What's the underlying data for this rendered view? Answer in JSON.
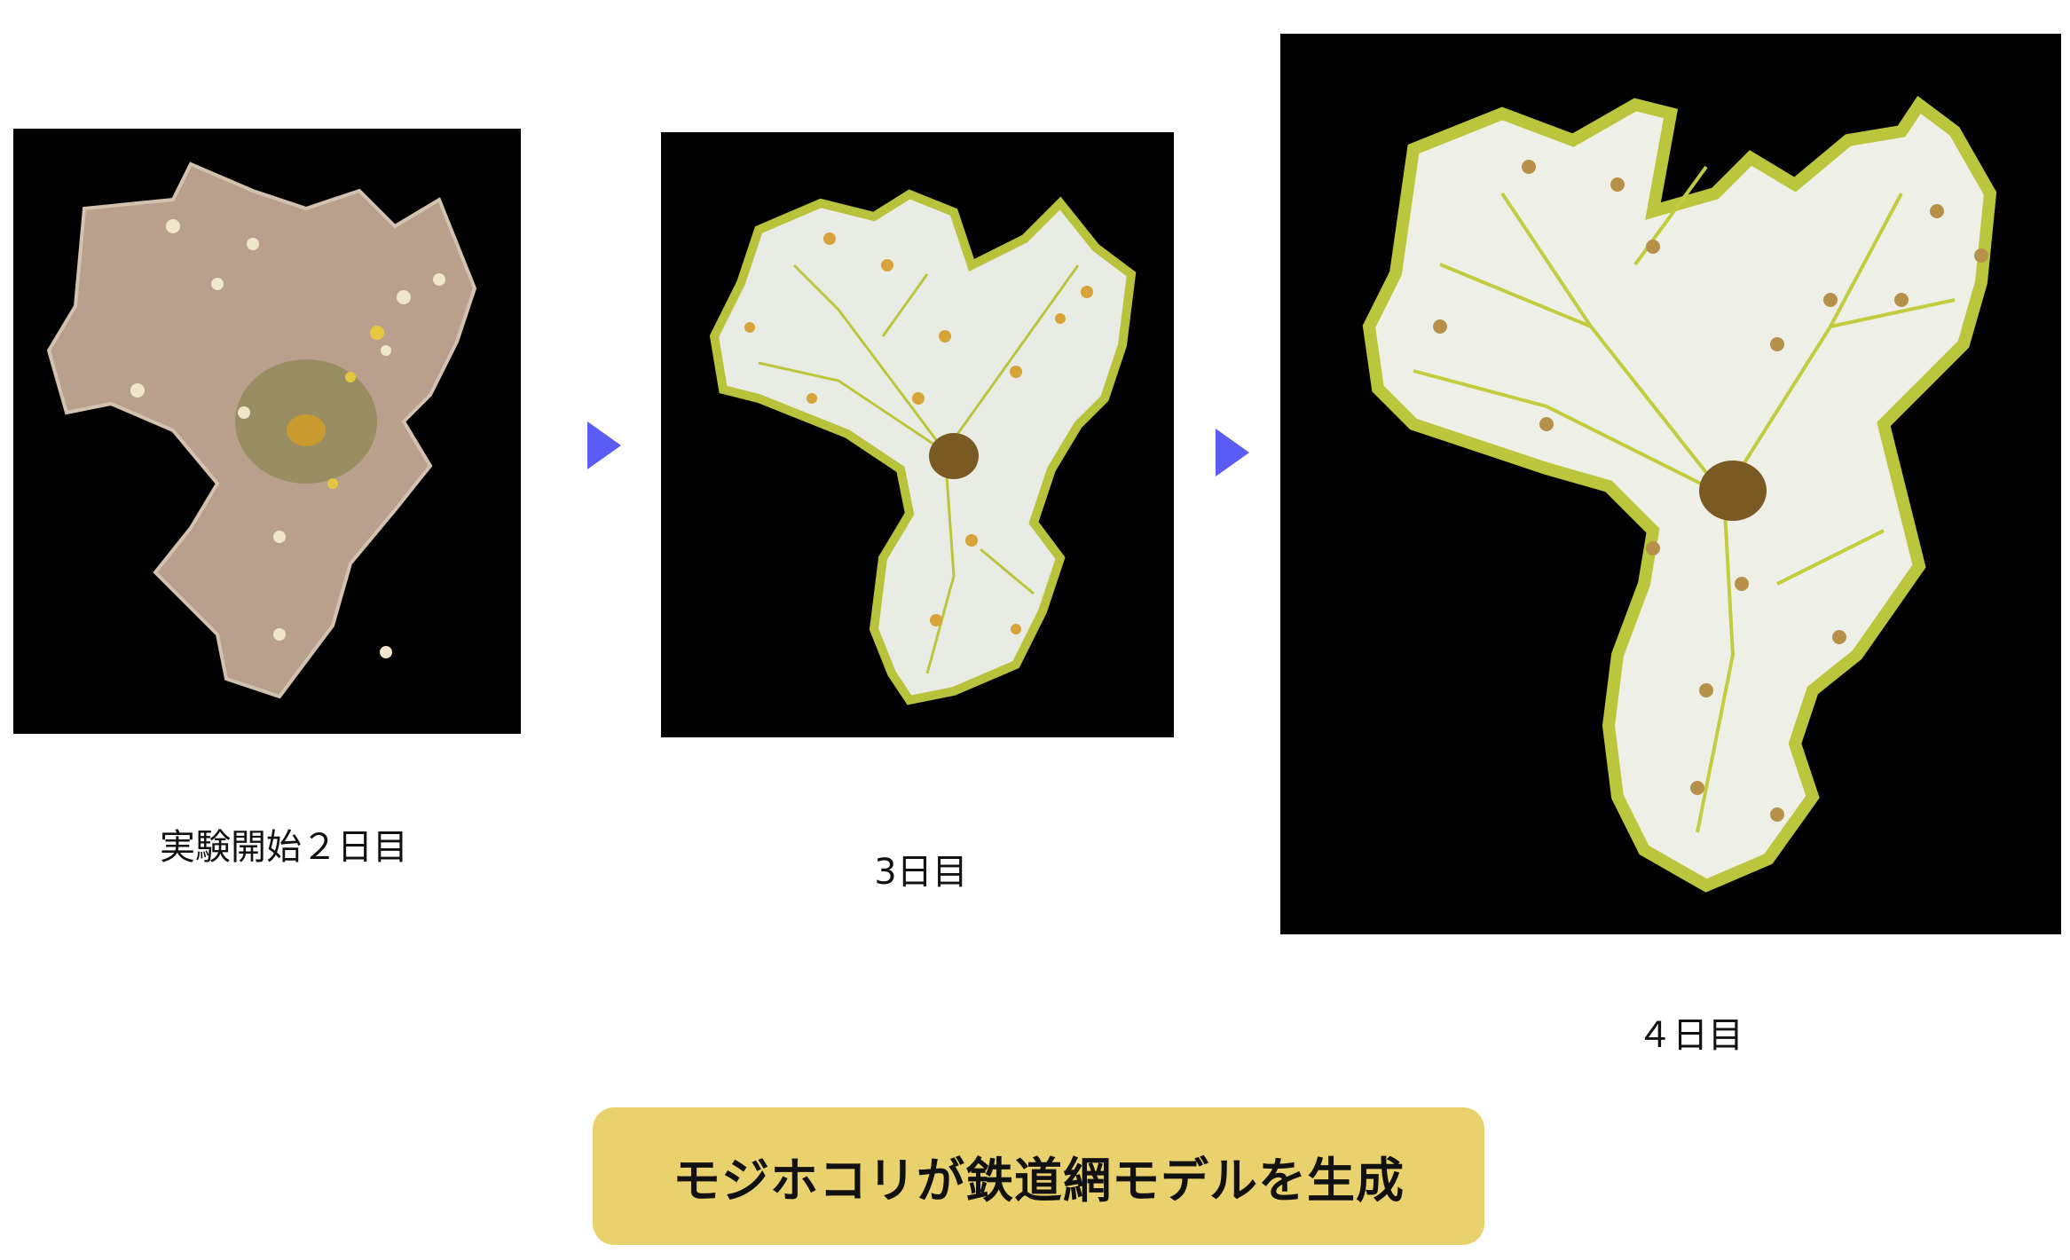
{
  "panels": [
    {
      "caption": "実験開始２日目",
      "image": "slime-mold-day-2-photo"
    },
    {
      "caption": "3日目",
      "image": "slime-mold-day-3-photo"
    },
    {
      "caption": "４日目",
      "image": "slime-mold-day-4-photo"
    }
  ],
  "banner": {
    "text": "モジホコリが鉄道網モデルを生成"
  },
  "colors": {
    "arrow": "#5b5bf5",
    "banner": "#e9d26e",
    "panel_bg": "#000000"
  }
}
